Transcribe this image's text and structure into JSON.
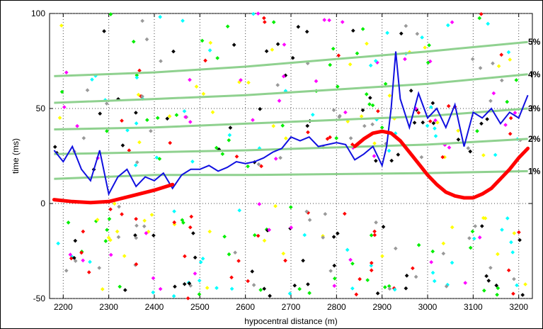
{
  "chart_data": {
    "type": "scatter",
    "title": "",
    "xlabel": "hypocentral distance (m)",
    "ylabel": "time (ms)",
    "xlim": [
      2170,
      3230
    ],
    "ylim": [
      -50,
      100
    ],
    "xticks": [
      2200,
      2300,
      2400,
      2500,
      2600,
      2700,
      2800,
      2900,
      3000,
      3100,
      3200
    ],
    "yticks": [
      -50,
      0,
      50,
      100
    ],
    "grid": "dotted",
    "colors": {
      "percent_curves": "#8fd18f",
      "blue_trace": "#1010e0",
      "red_curve": "#ff0000",
      "scatter": [
        "#000000",
        "#ff00ff",
        "#00ee00",
        "#ff0000",
        "#ffff00",
        "#00ffff",
        "#999999"
      ]
    },
    "percent_curves": [
      {
        "label": "1%",
        "x": [
          2180,
          2400,
          2600,
          2800,
          3000,
          3220
        ],
        "y": [
          13,
          15,
          15,
          15.5,
          16,
          17
        ]
      },
      {
        "label": "2%",
        "x": [
          2180,
          2400,
          2600,
          2800,
          3000,
          3220
        ],
        "y": [
          26,
          27,
          28,
          29.5,
          31,
          34
        ]
      },
      {
        "label": "3%",
        "x": [
          2180,
          2400,
          2600,
          2800,
          3000,
          3220
        ],
        "y": [
          39,
          40,
          42,
          44,
          46,
          50
        ]
      },
      {
        "label": "4%",
        "x": [
          2180,
          2400,
          2600,
          2800,
          3000,
          3220
        ],
        "y": [
          53,
          55,
          57,
          60,
          63,
          68
        ]
      },
      {
        "label": "5%",
        "x": [
          2180,
          2400,
          2600,
          2800,
          3000,
          3220
        ],
        "y": [
          67,
          69,
          72,
          76,
          80,
          85
        ]
      }
    ],
    "red_segments": [
      {
        "x": [
          2180,
          2220,
          2260,
          2300,
          2350,
          2400,
          2440
        ],
        "y": [
          2,
          1,
          0.5,
          1,
          4,
          7,
          10
        ]
      },
      {
        "x": [
          2840,
          2860,
          2880,
          2900,
          2920,
          2940,
          2960,
          2980,
          3000,
          3020,
          3040,
          3060,
          3080,
          3100,
          3120,
          3140,
          3160,
          3180,
          3200,
          3220
        ],
        "y": [
          30,
          34,
          37,
          38,
          37,
          33,
          27,
          21,
          15,
          10,
          6,
          4,
          3,
          3,
          5,
          8,
          13,
          18,
          24,
          29
        ]
      }
    ],
    "blue_trace": {
      "x": [
        2180,
        2200,
        2220,
        2240,
        2260,
        2280,
        2300,
        2320,
        2340,
        2360,
        2380,
        2400,
        2420,
        2440,
        2460,
        2480,
        2500,
        2520,
        2540,
        2560,
        2580,
        2600,
        2620,
        2640,
        2660,
        2680,
        2700,
        2720,
        2740,
        2760,
        2780,
        2800,
        2820,
        2840,
        2860,
        2880,
        2900,
        2910,
        2920,
        2930,
        2940,
        2960,
        2980,
        3000,
        3020,
        3040,
        3060,
        3080,
        3100,
        3120,
        3140,
        3160,
        3180,
        3200,
        3220
      ],
      "y": [
        28,
        22,
        30,
        18,
        12,
        28,
        5,
        14,
        18,
        9,
        14,
        12,
        16,
        8,
        15,
        18,
        18,
        20,
        17,
        19,
        22,
        21,
        22,
        24,
        27,
        29,
        35,
        33,
        35,
        30,
        31,
        32,
        31,
        23,
        26,
        30,
        20,
        30,
        50,
        80,
        55,
        40,
        58,
        45,
        50,
        40,
        52,
        30,
        48,
        45,
        50,
        42,
        48,
        45,
        57
      ]
    }
  }
}
